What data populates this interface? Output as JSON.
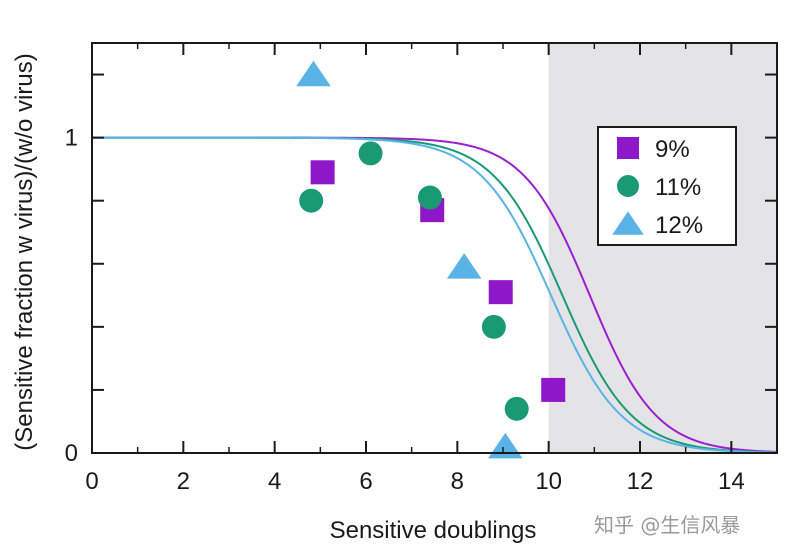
{
  "chart_data": {
    "type": "scatter",
    "title": "",
    "xlabel": "Sensitive doublings",
    "ylabel": "(Sensitive fraction w virus)/(w/o virus)",
    "xlim": [
      0,
      15
    ],
    "ylim": [
      0,
      1.3
    ],
    "xticks": [
      0,
      2,
      4,
      6,
      8,
      10,
      12,
      14
    ],
    "xtick_labels": [
      "0",
      "2",
      "4",
      "6",
      "8",
      "10",
      "12",
      "14"
    ],
    "yticks": [
      0,
      0.2,
      0.4,
      0.6,
      0.8,
      1.0,
      1.2
    ],
    "ytick_labels": [
      "0",
      "",
      "",
      "",
      "",
      "1",
      ""
    ],
    "shaded_region": {
      "x_from": 10,
      "x_to": 15,
      "color": "#e4e4e7"
    },
    "grid": false,
    "legend_position": "top-right",
    "series": [
      {
        "name": "9%",
        "marker": "square",
        "color": "#8e17c9",
        "points": [
          [
            5.05,
            0.89
          ],
          [
            7.45,
            0.77
          ],
          [
            8.95,
            0.51
          ],
          [
            10.1,
            0.2
          ]
        ],
        "curve": {
          "midpoint": 10.9,
          "steepness": 1.38,
          "color": "#9b1fd0"
        }
      },
      {
        "name": "11%",
        "marker": "circle",
        "color": "#1a9a72",
        "points": [
          [
            4.8,
            0.8
          ],
          [
            6.1,
            0.95
          ],
          [
            7.4,
            0.81
          ],
          [
            8.8,
            0.4
          ],
          [
            9.3,
            0.14
          ]
        ],
        "curve": {
          "midpoint": 10.3,
          "steepness": 1.32,
          "color": "#1a9a72"
        }
      },
      {
        "name": "12%",
        "marker": "triangle",
        "color": "#5ab3e6",
        "points": [
          [
            4.85,
            1.2
          ],
          [
            8.15,
            0.59
          ],
          [
            9.05,
            0.02
          ]
        ],
        "curve": {
          "midpoint": 10.05,
          "steepness": 1.3,
          "color": "#5ab3e6"
        }
      }
    ]
  },
  "watermark": {
    "text": "知乎 @生信风暴"
  }
}
